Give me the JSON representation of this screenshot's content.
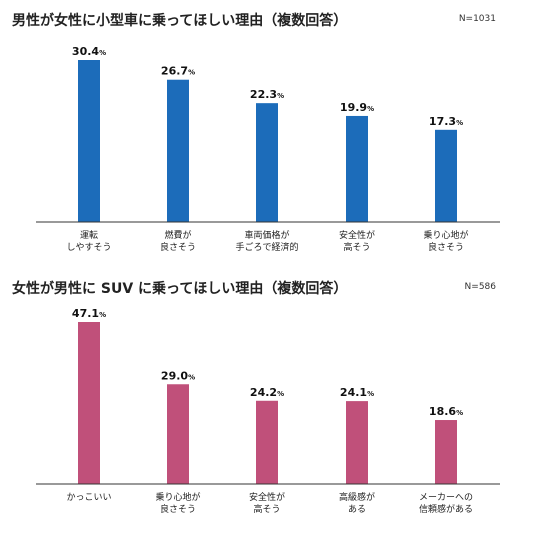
{
  "chart_data": [
    {
      "type": "bar",
      "title": "男性が女性に小型車に乗ってほしい理由（複数回答）",
      "note": "N=1031",
      "color": "#1c6cba",
      "ylim": [
        0,
        32
      ],
      "categories": [
        [
          "運転",
          "しやすそう"
        ],
        [
          "燃費が",
          "良さそう"
        ],
        [
          "車両価格が",
          "手ごろで経済的"
        ],
        [
          "安全性が",
          "高そう"
        ],
        [
          "乗り心地が",
          "良さそう"
        ]
      ],
      "values": [
        30.4,
        26.7,
        22.3,
        19.9,
        17.3
      ],
      "value_labels": [
        "30.4",
        "26.7",
        "22.3",
        "19.9",
        "17.3"
      ],
      "unit": "%"
    },
    {
      "type": "bar",
      "title": "女性が男性に SUV に乗ってほしい理由（複数回答）",
      "note": "N=586",
      "color": "#c0507a",
      "ylim": [
        0,
        50
      ],
      "categories": [
        [
          "かっこいい"
        ],
        [
          "乗り心地が",
          "良さそう"
        ],
        [
          "安全性が",
          "高そう"
        ],
        [
          "高級感が",
          "ある"
        ],
        [
          "メーカーへの",
          "信頼感がある"
        ]
      ],
      "values": [
        47.1,
        29.0,
        24.2,
        24.1,
        18.6
      ],
      "value_labels": [
        "47.1",
        "29.0",
        "24.2",
        "24.1",
        "18.6"
      ],
      "unit": "%"
    }
  ]
}
